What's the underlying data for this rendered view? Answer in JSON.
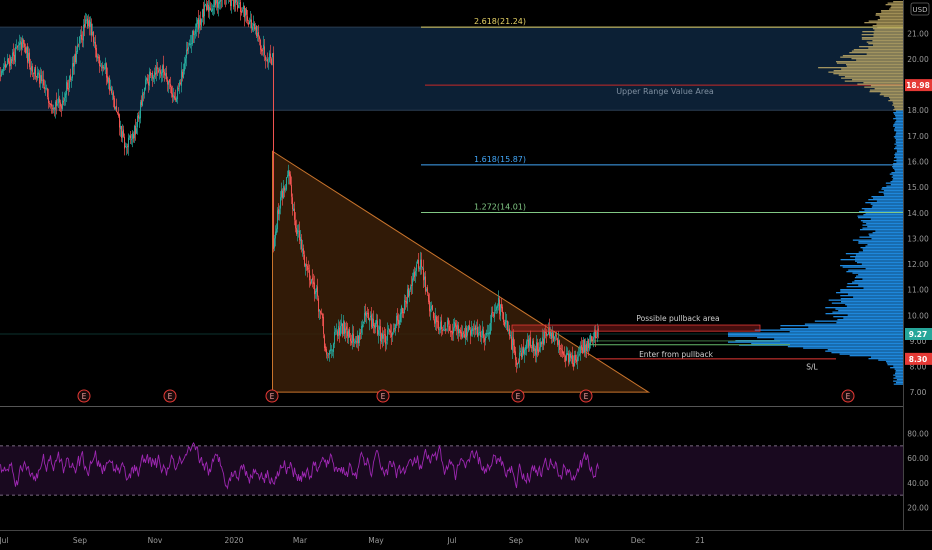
{
  "chart_data": {
    "type": "candlestick",
    "currency": "USD",
    "price_axis": {
      "min": 6.5,
      "max": 22.3,
      "ticks": [
        "22.00",
        "21.00",
        "20.00",
        "19.00",
        "18.00",
        "17.00",
        "16.00",
        "15.00",
        "14.00",
        "13.00",
        "12.00",
        "11.00",
        "10.00",
        "9.00",
        "8.00",
        "7.00"
      ],
      "tick_values": [
        22,
        21,
        20,
        19,
        18,
        17,
        16,
        15,
        14,
        13,
        12,
        11,
        10,
        9,
        8,
        7
      ],
      "badges": [
        {
          "label": "18.98",
          "value": 18.98,
          "color": "#e53935"
        },
        {
          "label": "9.27",
          "value": 9.27,
          "color": "#26a69a"
        },
        {
          "label": "8.30",
          "value": 8.3,
          "color": "#e53935"
        }
      ]
    },
    "time_axis": {
      "labels": [
        "Jul",
        "Sep",
        "Nov",
        "2020",
        "Mar",
        "May",
        "Jul",
        "Sep",
        "Nov",
        "Dec",
        "21"
      ],
      "label_index": [
        4,
        80,
        155,
        234,
        300,
        376,
        452,
        516,
        582,
        638,
        700
      ]
    },
    "price_series": {
      "anchors": [
        [
          0,
          19.4
        ],
        [
          10,
          20.0
        ],
        [
          22,
          20.6
        ],
        [
          30,
          19.8
        ],
        [
          40,
          19.1
        ],
        [
          50,
          18.4
        ],
        [
          60,
          18.2
        ],
        [
          70,
          19.3
        ],
        [
          80,
          20.8
        ],
        [
          88,
          21.6
        ],
        [
          95,
          20.2
        ],
        [
          105,
          19.6
        ],
        [
          115,
          18.0
        ],
        [
          125,
          16.5
        ],
        [
          135,
          17.2
        ],
        [
          145,
          19.0
        ],
        [
          155,
          19.6
        ],
        [
          165,
          19.5
        ],
        [
          175,
          18.3
        ],
        [
          185,
          20.0
        ],
        [
          195,
          21.2
        ],
        [
          205,
          21.9
        ],
        [
          215,
          22.2
        ],
        [
          225,
          22.5
        ],
        [
          235,
          22.1
        ],
        [
          245,
          21.8
        ],
        [
          255,
          21.0
        ],
        [
          265,
          20.2
        ],
        [
          272,
          20.0
        ],
        [
          272,
          12.6
        ],
        [
          280,
          14.6
        ],
        [
          288,
          15.4
        ],
        [
          295,
          13.6
        ],
        [
          305,
          12.0
        ],
        [
          315,
          11.0
        ],
        [
          322,
          9.6
        ],
        [
          326,
          8.2
        ],
        [
          335,
          9.2
        ],
        [
          345,
          9.6
        ],
        [
          355,
          8.9
        ],
        [
          365,
          9.9
        ],
        [
          375,
          9.6
        ],
        [
          385,
          9.0
        ],
        [
          395,
          9.7
        ],
        [
          405,
          10.4
        ],
        [
          412,
          11.6
        ],
        [
          420,
          12.1
        ],
        [
          428,
          10.5
        ],
        [
          436,
          9.7
        ],
        [
          446,
          9.6
        ],
        [
          456,
          9.5
        ],
        [
          466,
          9.3
        ],
        [
          476,
          9.4
        ],
        [
          486,
          9.2
        ],
        [
          496,
          10.6
        ],
        [
          506,
          9.5
        ],
        [
          516,
          8.3
        ],
        [
          526,
          8.9
        ],
        [
          536,
          8.7
        ],
        [
          546,
          9.3
        ],
        [
          556,
          9.0
        ],
        [
          566,
          8.4
        ],
        [
          576,
          8.2
        ],
        [
          582,
          8.7
        ],
        [
          590,
          9.0
        ],
        [
          598,
          9.5
        ]
      ]
    },
    "rsi": {
      "ticks": [
        "80.00",
        "60.00",
        "40.00",
        "20.00"
      ],
      "tick_values": [
        80,
        60,
        40,
        20
      ],
      "upper_band": 70,
      "lower_band": 30
    },
    "fib_levels": [
      {
        "label": "2.618(21.24)",
        "value": 21.24,
        "color": "#e5d165"
      },
      {
        "label": "1.618(15.87)",
        "value": 15.87,
        "color": "#42a5f5"
      },
      {
        "label": "1.272(14.01)",
        "value": 14.01,
        "color": "#81c784"
      }
    ],
    "value_area": {
      "label": "Upper Range Value Area",
      "top": 21.24,
      "bottom": 18.0,
      "line": 18.98
    },
    "triangle": {
      "apex_price": 16.4,
      "base_price": 7.0,
      "start_index": 272,
      "end_index": 648
    },
    "annotations": [
      {
        "label": "Possible pullback area",
        "value": 9.5
      },
      {
        "label": "Enter from pullback",
        "value": 8.85
      },
      {
        "label": "S/L",
        "value": 8.0
      }
    ],
    "event_markers": {
      "symbol": "E",
      "indices": [
        84,
        170,
        272,
        383,
        518,
        586,
        848
      ]
    },
    "colors": {
      "up": "#26a69a",
      "down": "#ef5350",
      "rsi": "#9c27b0",
      "volume_profile": "#2196f3",
      "volume_profile_upper": "#c8b26a"
    }
  }
}
